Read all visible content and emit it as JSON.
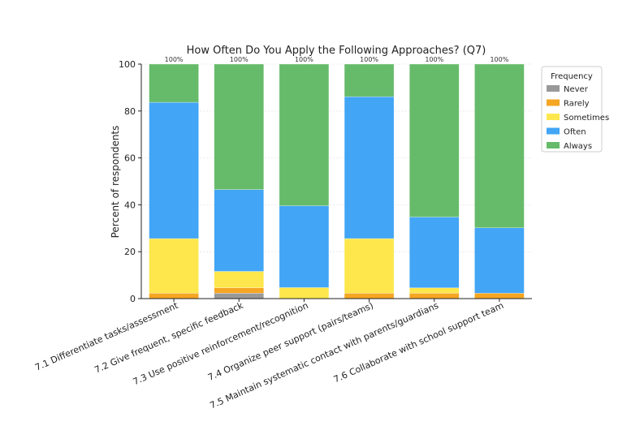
{
  "chart_data": {
    "type": "bar",
    "stacked": true,
    "title": "How Often Do You Apply the Following Approaches? (Q7)",
    "xlabel": "",
    "ylabel": "Percent of respondents",
    "ylim": [
      0,
      100
    ],
    "yticks": [
      0,
      20,
      40,
      60,
      80,
      100
    ],
    "grid": true,
    "legend_title": "Frequency",
    "legend_position": "right",
    "categories": [
      "7.1 Differentiate tasks/assessment",
      "7.2 Give frequent, specific feedback",
      "7.3 Use positive reinforcement/recognition",
      "7.4 Organize peer support (pairs/teams)",
      "7.5 Maintain systematic contact with parents/guardians",
      "7.6 Collaborate with school support team"
    ],
    "series": [
      {
        "name": "Never",
        "color": "#999999",
        "values": [
          0,
          2.3,
          0,
          0,
          0,
          0
        ]
      },
      {
        "name": "Rarely",
        "color": "#f5a623",
        "values": [
          2.3,
          2.3,
          0,
          2.3,
          2.3,
          2.3
        ]
      },
      {
        "name": "Sometimes",
        "color": "#fde74c",
        "values": [
          23.3,
          7,
          4.7,
          23.3,
          2.3,
          0
        ]
      },
      {
        "name": "Often",
        "color": "#42a5f5",
        "values": [
          58.1,
          34.9,
          34.9,
          60.5,
          30.2,
          27.9
        ]
      },
      {
        "name": "Always",
        "color": "#66bb6a",
        "values": [
          16.3,
          53.5,
          60.4,
          13.9,
          65.2,
          69.8
        ]
      }
    ],
    "totals": [
      "100%",
      "100%",
      "100%",
      "100%",
      "100%",
      "100%"
    ]
  }
}
